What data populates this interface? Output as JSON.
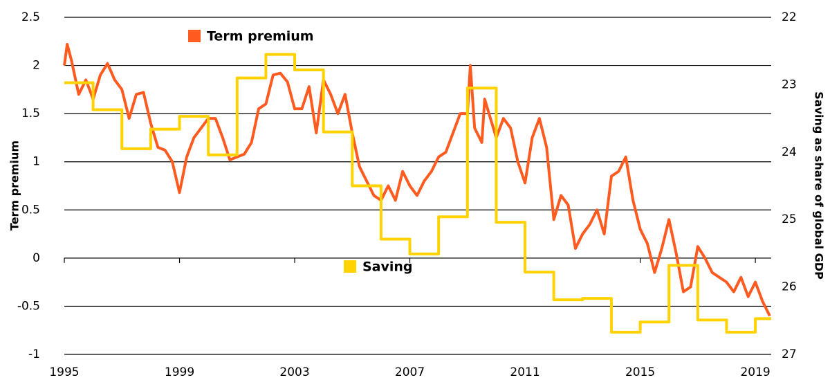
{
  "chart_data": {
    "type": "line",
    "y_label": "Term premium",
    "y2_label": "Saving as share of global GDP",
    "xlim": [
      1995,
      2019.55
    ],
    "xticks": [
      1995,
      1999,
      2003,
      2007,
      2011,
      2015,
      2019
    ],
    "ylim": [
      -1,
      2.5
    ],
    "yticks": [
      2.5,
      2,
      1.5,
      1,
      0.5,
      0,
      -0.5,
      -1
    ],
    "y2lim": [
      27,
      22
    ],
    "y2ticks": [
      22,
      23,
      24,
      25,
      26,
      27
    ],
    "grid": true,
    "series": [
      {
        "name": "Term premium",
        "color": "#ff5a1f",
        "step": false,
        "x": [
          1995.0,
          1995.1,
          1995.25,
          1995.5,
          1995.75,
          1996.0,
          1996.25,
          1996.5,
          1996.75,
          1997.0,
          1997.25,
          1997.5,
          1997.75,
          1998.0,
          1998.25,
          1998.5,
          1998.75,
          1999.0,
          1999.25,
          1999.5,
          1999.75,
          2000.0,
          2000.25,
          2000.5,
          2000.75,
          2001.0,
          2001.25,
          2001.5,
          2001.75,
          2002.0,
          2002.25,
          2002.5,
          2002.75,
          2003.0,
          2003.25,
          2003.5,
          2003.75,
          2004.0,
          2004.25,
          2004.5,
          2004.75,
          2005.0,
          2005.25,
          2005.5,
          2005.75,
          2006.0,
          2006.25,
          2006.5,
          2006.75,
          2007.0,
          2007.25,
          2007.5,
          2007.75,
          2008.0,
          2008.25,
          2008.5,
          2008.75,
          2009.0,
          2009.1,
          2009.25,
          2009.5,
          2009.6,
          2010.0,
          2010.25,
          2010.5,
          2010.75,
          2011.0,
          2011.25,
          2011.5,
          2011.75,
          2012.0,
          2012.25,
          2012.5,
          2012.75,
          2013.0,
          2013.25,
          2013.5,
          2013.75,
          2014.0,
          2014.25,
          2014.5,
          2014.75,
          2015.0,
          2015.25,
          2015.5,
          2015.75,
          2016.0,
          2016.25,
          2016.5,
          2016.75,
          2017.0,
          2017.25,
          2017.5,
          2017.75,
          2018.0,
          2018.25,
          2018.5,
          2018.75,
          2019.0,
          2019.25,
          2019.5
        ],
        "values": [
          2.0,
          2.22,
          2.05,
          1.7,
          1.85,
          1.65,
          1.9,
          2.02,
          1.85,
          1.75,
          1.45,
          1.7,
          1.72,
          1.4,
          1.15,
          1.12,
          1.0,
          0.68,
          1.05,
          1.25,
          1.35,
          1.45,
          1.45,
          1.25,
          1.02,
          1.05,
          1.08,
          1.2,
          1.55,
          1.6,
          1.9,
          1.92,
          1.83,
          1.55,
          1.55,
          1.78,
          1.3,
          1.85,
          1.7,
          1.5,
          1.7,
          1.3,
          0.95,
          0.8,
          0.65,
          0.6,
          0.75,
          0.6,
          0.9,
          0.75,
          0.65,
          0.8,
          0.9,
          1.05,
          1.1,
          1.3,
          1.5,
          1.5,
          2.0,
          1.35,
          1.2,
          1.65,
          1.25,
          1.45,
          1.35,
          1.0,
          0.78,
          1.25,
          1.45,
          1.15,
          0.4,
          0.65,
          0.55,
          0.1,
          0.25,
          0.35,
          0.5,
          0.25,
          0.85,
          0.9,
          1.05,
          0.6,
          0.3,
          0.15,
          -0.15,
          0.1,
          0.4,
          0.05,
          -0.35,
          -0.3,
          0.12,
          0.0,
          -0.15,
          -0.2,
          -0.25,
          -0.35,
          -0.2,
          -0.4,
          -0.25,
          -0.45,
          -0.6
        ]
      },
      {
        "name": "Saving",
        "color": "#ffd200",
        "axis": "y2",
        "step": true,
        "x": [
          1995,
          1996,
          1997,
          1998,
          1999,
          2000,
          2001,
          2002,
          2003,
          2004,
          2005,
          2006,
          2007,
          2008,
          2009,
          2010,
          2011,
          2012,
          2013,
          2014,
          2015,
          2016,
          2017,
          2018,
          2019
        ],
        "values": [
          22.97,
          23.37,
          23.95,
          23.66,
          23.47,
          24.04,
          22.9,
          22.55,
          22.78,
          23.7,
          24.5,
          25.29,
          25.51,
          24.96,
          23.05,
          25.04,
          25.78,
          26.19,
          26.17,
          26.67,
          26.52,
          25.68,
          26.49,
          26.67,
          26.47
        ]
      }
    ]
  }
}
